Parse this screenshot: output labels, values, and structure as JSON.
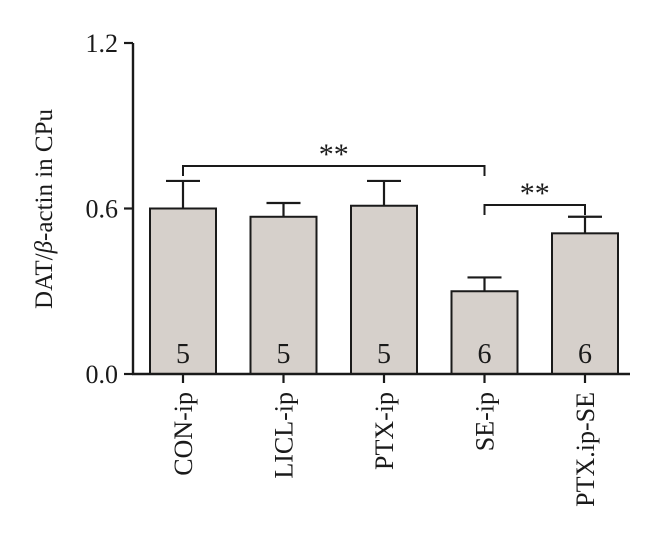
{
  "chart_data": {
    "type": "bar",
    "categories": [
      "CON-ip",
      "LICL-ip",
      "PTX-ip",
      "SE-ip",
      "PTX.ip-SE"
    ],
    "values": [
      0.6,
      0.57,
      0.61,
      0.3,
      0.51
    ],
    "errors": [
      0.1,
      0.05,
      0.09,
      0.05,
      0.06
    ],
    "n_labels": [
      "5",
      "5",
      "5",
      "6",
      "6"
    ],
    "title": "",
    "xlabel": "",
    "ylabel": "DAT/β-actin in CPu",
    "ylabel_parts": {
      "prefix": "DAT/",
      "greek": "β",
      "suffix": "-actin in CPu"
    },
    "ylim": [
      0,
      1.2
    ],
    "yticks": [
      0.0,
      0.6,
      1.2
    ],
    "ytick_labels": [
      "0.0",
      "0.6",
      "1.2"
    ],
    "grid": false,
    "bar_color": "#d6d0cb",
    "significance": [
      {
        "from": 0,
        "to": 3,
        "label": "**"
      },
      {
        "from": 3,
        "to": 4,
        "label": "**"
      }
    ]
  }
}
